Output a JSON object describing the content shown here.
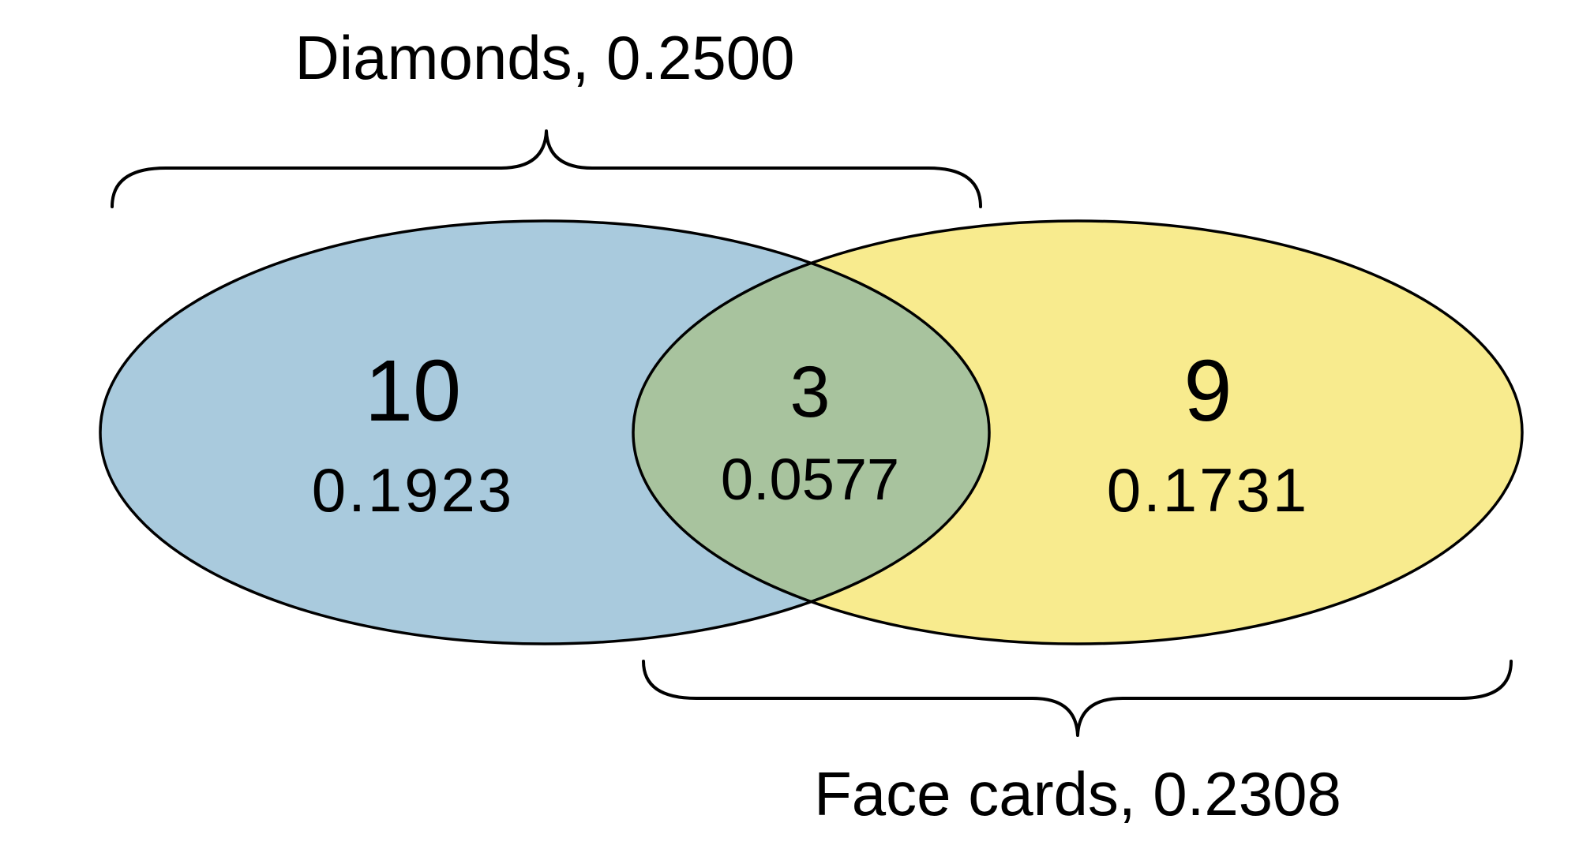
{
  "diagram": {
    "type": "venn",
    "sets": [
      {
        "id": "diamonds",
        "label": "Diamonds, 0.2500",
        "fill": "#a9cadd"
      },
      {
        "id": "face_cards",
        "label": "Face cards, 0.2308",
        "fill": "#f8eb8e"
      }
    ],
    "regions": {
      "diamonds_only": {
        "count": "10",
        "probability": "0.1923"
      },
      "both": {
        "count": "3",
        "probability": "0.0577"
      },
      "face_cards_only": {
        "count": "9",
        "probability": "0.1731"
      }
    },
    "colors": {
      "diamonds_fill": "#a9cadd",
      "face_cards_fill": "#f8eb8e",
      "overlap_fill": "#a8c39e",
      "outline": "#000000",
      "background": "#ffffff"
    }
  }
}
